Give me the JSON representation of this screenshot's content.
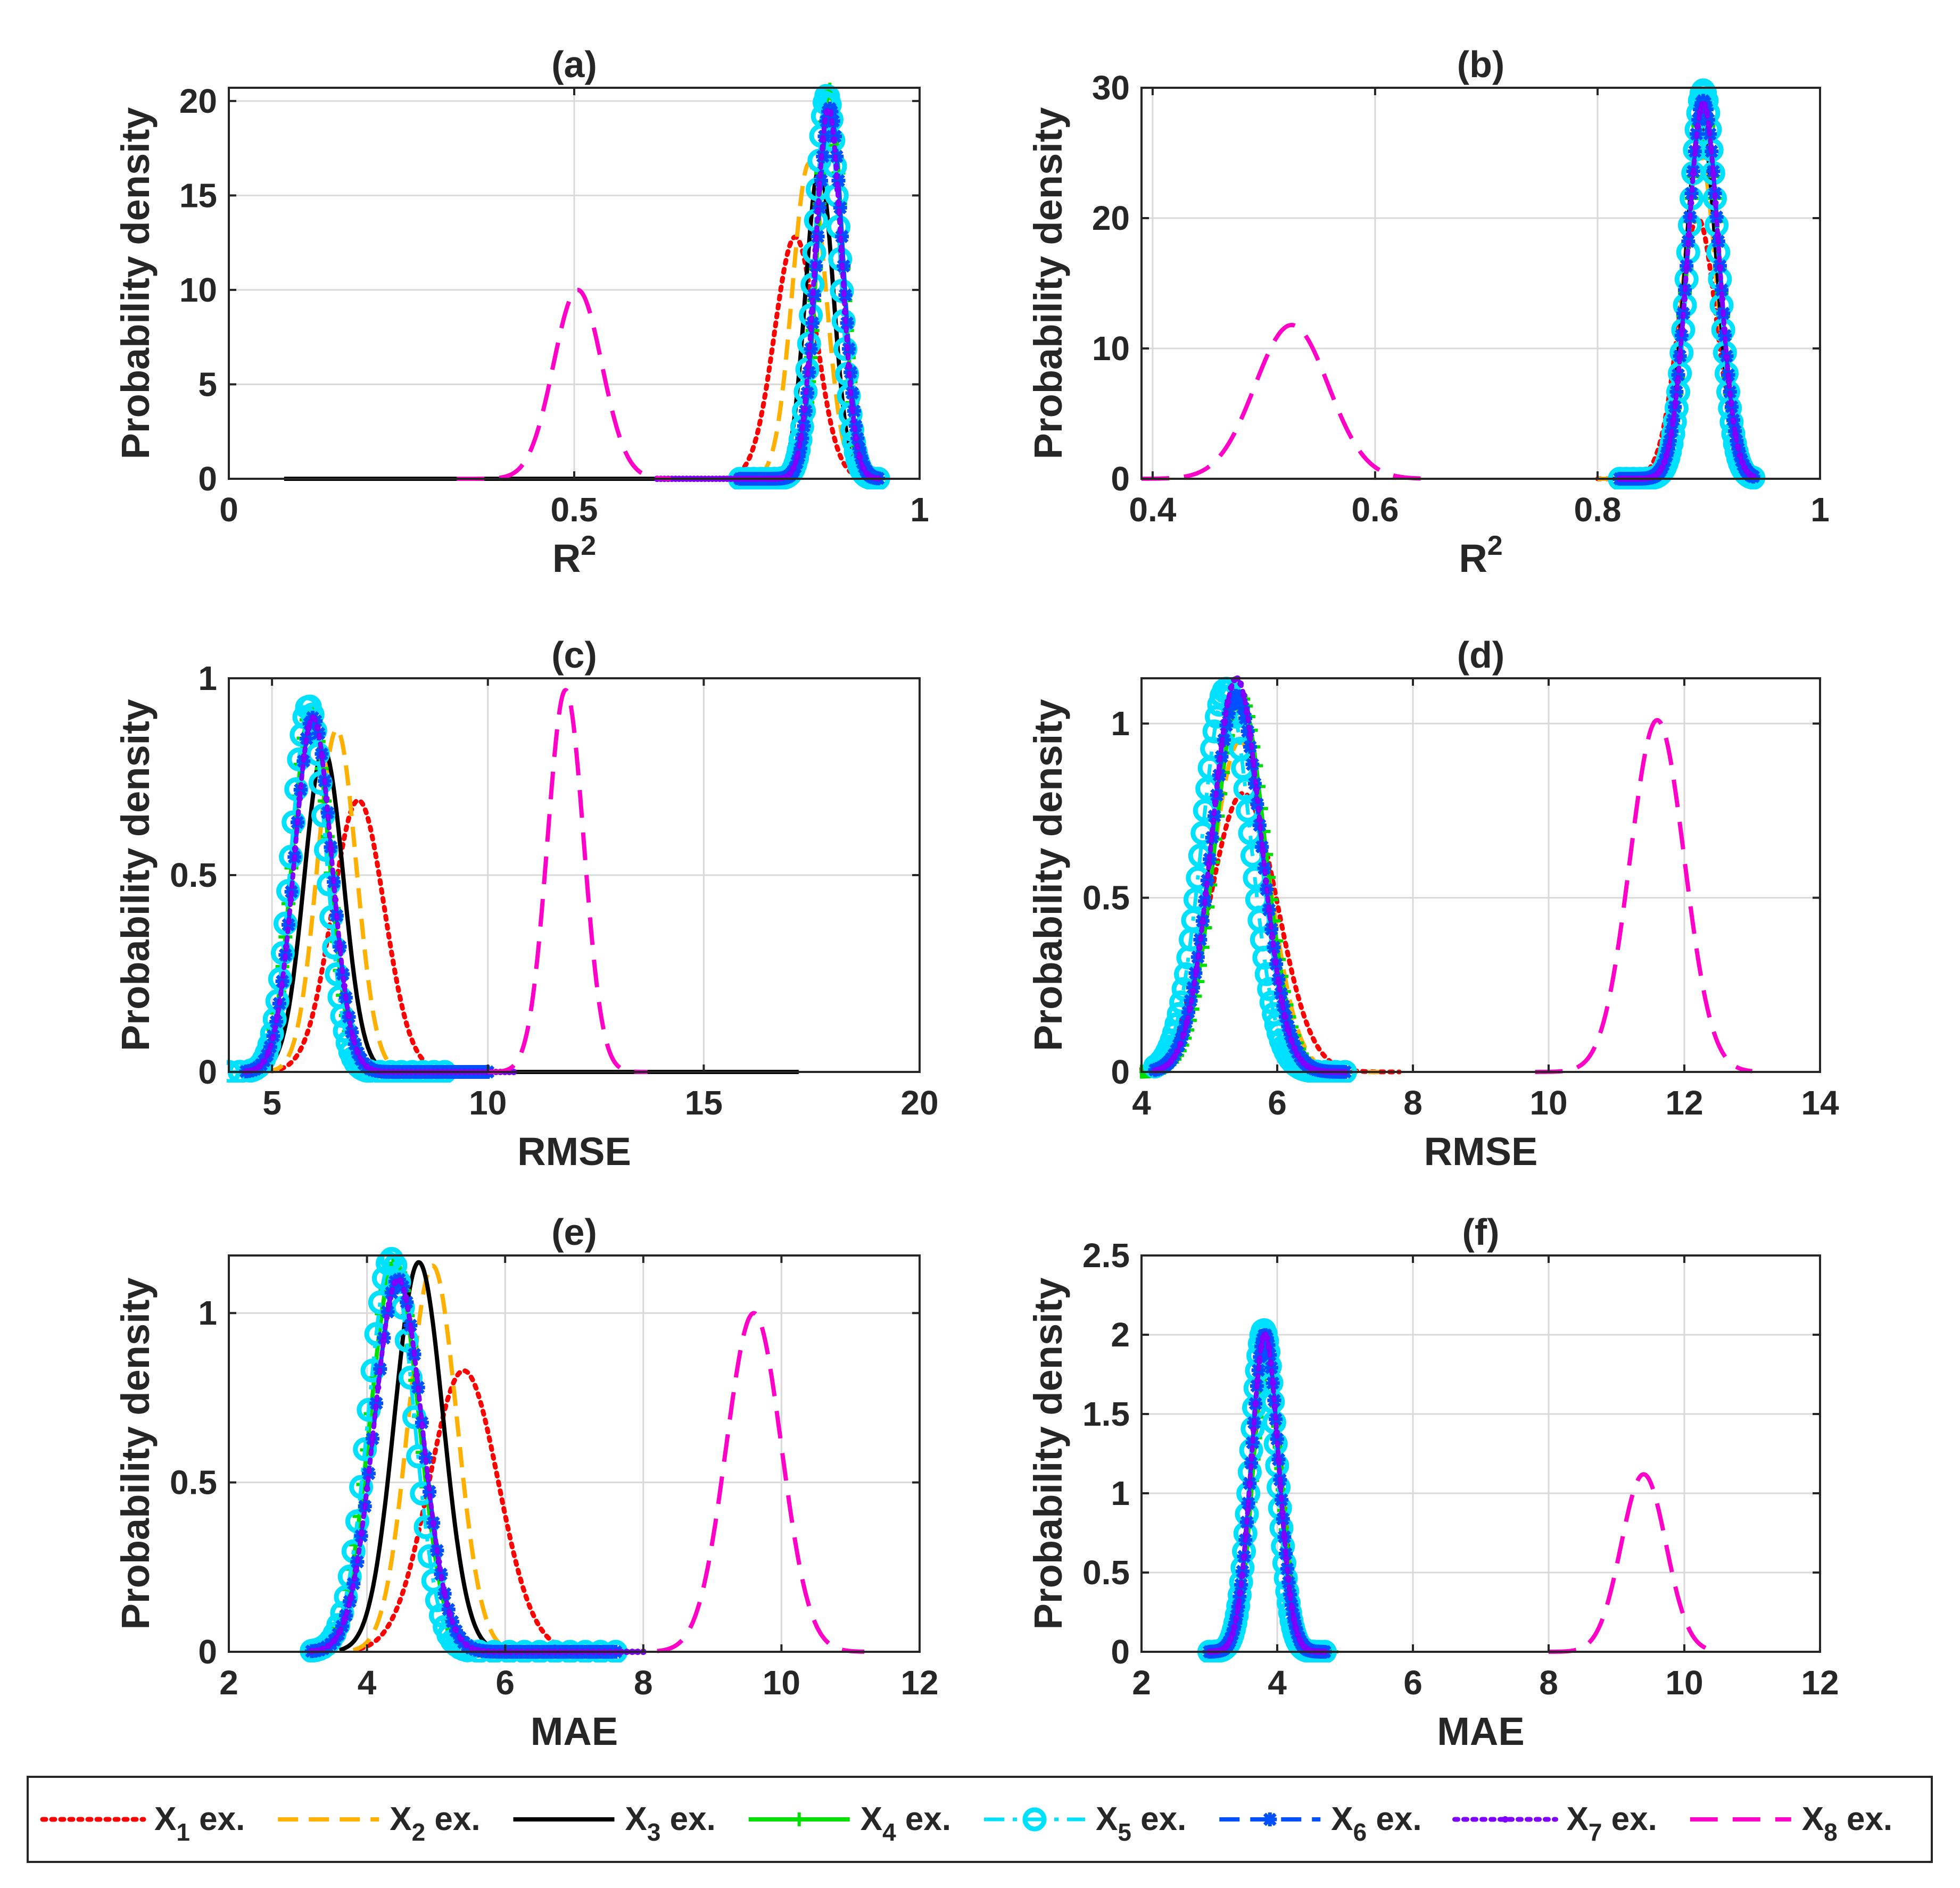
{
  "legend": {
    "items": [
      {
        "pre": "X",
        "sub": "1",
        "post": " ex.",
        "color": "#ff0000",
        "dash": "dot",
        "marker": "none"
      },
      {
        "pre": "X",
        "sub": "2",
        "post": " ex.",
        "color": "#ffb000",
        "dash": "dash",
        "marker": "none"
      },
      {
        "pre": "X",
        "sub": "3",
        "post": " ex.",
        "color": "#000000",
        "dash": "solid",
        "marker": "none"
      },
      {
        "pre": "X",
        "sub": "4",
        "post": " ex.",
        "color": "#00e000",
        "dash": "solid",
        "marker": "plus"
      },
      {
        "pre": "X",
        "sub": "5",
        "post": " ex.",
        "color": "#00e0ff",
        "dash": "dashdot",
        "marker": "circle"
      },
      {
        "pre": "X",
        "sub": "6",
        "post": " ex.",
        "color": "#0050ff",
        "dash": "dash",
        "marker": "star"
      },
      {
        "pre": "X",
        "sub": "7",
        "post": " ex.",
        "color": "#8000ff",
        "dash": "dot",
        "marker": "dot"
      },
      {
        "pre": "X",
        "sub": "8",
        "post": " ex.",
        "color": "#ff00c8",
        "dash": "longdash",
        "marker": "none"
      }
    ]
  },
  "chart_data": [
    {
      "type": "line",
      "title": "(a)",
      "xlabel": "R",
      "xlabel_sup": "2",
      "ylabel": "Probability density",
      "xlim": [
        0,
        1
      ],
      "ylim": [
        0,
        20.7
      ],
      "xticks": [
        "0",
        "0.5",
        "1"
      ],
      "xtick_values": [
        0,
        0.5,
        1
      ],
      "yticks": [
        "0",
        "5",
        "10",
        "15",
        "20"
      ],
      "ytick_values": [
        0,
        5,
        10,
        15,
        20
      ],
      "grid": true,
      "series": [
        {
          "name": "X1 ex.",
          "kind": "gauss",
          "mu": 0.82,
          "sigma": 0.03,
          "peak": 12.8,
          "from": 0.7,
          "to": 0.9
        },
        {
          "name": "X2 ex.",
          "kind": "gauss",
          "mu": 0.84,
          "sigma": 0.024,
          "peak": 16.7,
          "from": 0.72,
          "to": 0.91
        },
        {
          "name": "X3 ex.",
          "kind": "gauss",
          "mu": 0.855,
          "sigma": 0.02,
          "peak": 16.5,
          "from": 0.08,
          "to": 0.93
        },
        {
          "name": "X4 ex.",
          "kind": "gauss",
          "mu": 0.87,
          "sigma": 0.018,
          "peak": 20.6,
          "from": 0.74,
          "to": 0.94
        },
        {
          "name": "X5 ex.",
          "kind": "gauss",
          "mu": 0.866,
          "sigma": 0.018,
          "peak": 20.3,
          "from": 0.74,
          "to": 0.94
        },
        {
          "name": "X6 ex.",
          "kind": "gauss",
          "mu": 0.87,
          "sigma": 0.019,
          "peak": 19.6,
          "from": 0.74,
          "to": 0.94
        },
        {
          "name": "X7 ex.",
          "kind": "gauss",
          "mu": 0.868,
          "sigma": 0.019,
          "peak": 19.6,
          "from": 0.62,
          "to": 0.94
        },
        {
          "name": "X8 ex.",
          "kind": "gauss",
          "mu": 0.505,
          "sigma": 0.035,
          "peak": 10.0,
          "from": 0.33,
          "to": 0.64
        }
      ]
    },
    {
      "type": "line",
      "title": "(b)",
      "xlabel": "R",
      "xlabel_sup": "2",
      "ylabel": "Probability density",
      "xlim": [
        0.39,
        1
      ],
      "ylim": [
        0,
        30
      ],
      "xticks": [
        "0.4",
        "0.6",
        "0.8",
        "1"
      ],
      "xtick_values": [
        0.4,
        0.6,
        0.8,
        1
      ],
      "yticks": [
        "0",
        "10",
        "20",
        "30"
      ],
      "ytick_values": [
        0,
        10,
        20,
        30
      ],
      "grid": true,
      "series": [
        {
          "name": "X1 ex.",
          "kind": "gauss",
          "mu": 0.89,
          "sigma": 0.017,
          "peak": 20.0,
          "from": 0.8,
          "to": 0.94
        },
        {
          "name": "X2 ex.",
          "kind": "gauss",
          "mu": 0.892,
          "sigma": 0.015,
          "peak": 25.0,
          "from": 0.8,
          "to": 0.94
        },
        {
          "name": "X3 ex.",
          "kind": "gauss",
          "mu": 0.893,
          "sigma": 0.014,
          "peak": 27.5,
          "from": 0.81,
          "to": 0.94
        },
        {
          "name": "X4 ex.",
          "kind": "gauss",
          "mu": 0.895,
          "sigma": 0.014,
          "peak": 28.5,
          "from": 0.82,
          "to": 0.94
        },
        {
          "name": "X5 ex.",
          "kind": "gauss",
          "mu": 0.895,
          "sigma": 0.013,
          "peak": 29.8,
          "from": 0.82,
          "to": 0.94
        },
        {
          "name": "X6 ex.",
          "kind": "gauss",
          "mu": 0.895,
          "sigma": 0.014,
          "peak": 29.0,
          "from": 0.82,
          "to": 0.94
        },
        {
          "name": "X7 ex.",
          "kind": "gauss",
          "mu": 0.895,
          "sigma": 0.014,
          "peak": 28.8,
          "from": 0.82,
          "to": 0.94
        },
        {
          "name": "X8 ex.",
          "kind": "gauss",
          "mu": 0.525,
          "sigma": 0.033,
          "peak": 11.8,
          "from": 0.39,
          "to": 0.65
        }
      ]
    },
    {
      "type": "line",
      "title": "(c)",
      "xlabel": "RMSE",
      "ylabel": "Probability density",
      "xlim": [
        4,
        20
      ],
      "ylim": [
        0,
        1
      ],
      "xticks": [
        "5",
        "10",
        "15",
        "20"
      ],
      "xtick_values": [
        5,
        10,
        15,
        20
      ],
      "yticks": [
        "0",
        "0.5",
        "1"
      ],
      "ytick_values": [
        0,
        0.5,
        1
      ],
      "grid": true,
      "series": [
        {
          "name": "X1 ex.",
          "kind": "gauss",
          "mu": 7.0,
          "sigma": 0.6,
          "peak": 0.69,
          "from": 5.0,
          "to": 9.2
        },
        {
          "name": "X2 ex.",
          "kind": "gauss",
          "mu": 6.5,
          "sigma": 0.45,
          "peak": 0.87,
          "from": 4.8,
          "to": 8.5
        },
        {
          "name": "X3 ex.",
          "kind": "gauss",
          "mu": 6.2,
          "sigma": 0.45,
          "peak": 0.82,
          "from": 4.6,
          "to": 17.2
        },
        {
          "name": "X4 ex.",
          "kind": "gauss",
          "mu": 5.9,
          "sigma": 0.42,
          "peak": 0.92,
          "from": 4.4,
          "to": 10.0
        },
        {
          "name": "X5 ex.",
          "kind": "gauss",
          "mu": 5.85,
          "sigma": 0.4,
          "peak": 0.93,
          "from": 4.0,
          "to": 9.0
        },
        {
          "name": "X6 ex.",
          "kind": "gauss",
          "mu": 5.95,
          "sigma": 0.43,
          "peak": 0.9,
          "from": 4.4,
          "to": 10.0
        },
        {
          "name": "X7 ex.",
          "kind": "gauss",
          "mu": 5.95,
          "sigma": 0.43,
          "peak": 0.9,
          "from": 4.4,
          "to": 10.6
        },
        {
          "name": "X8 ex.",
          "kind": "gauss",
          "mu": 11.8,
          "sigma": 0.42,
          "peak": 0.97,
          "from": 10.0,
          "to": 13.7
        }
      ]
    },
    {
      "type": "line",
      "title": "(d)",
      "xlabel": "RMSE",
      "ylabel": "Probability density",
      "xlim": [
        4,
        14
      ],
      "ylim": [
        0,
        1.13
      ],
      "xticks": [
        "4",
        "6",
        "8",
        "10",
        "12",
        "14"
      ],
      "xtick_values": [
        4,
        6,
        8,
        10,
        12,
        14
      ],
      "yticks": [
        "0",
        "0.5",
        "1"
      ],
      "ytick_values": [
        0,
        0.5,
        1
      ],
      "grid": true,
      "series": [
        {
          "name": "X1 ex.",
          "kind": "gauss",
          "mu": 5.5,
          "sigma": 0.5,
          "peak": 0.8,
          "from": 4.0,
          "to": 7.8
        },
        {
          "name": "X2 ex.",
          "kind": "gauss",
          "mu": 5.45,
          "sigma": 0.42,
          "peak": 0.95,
          "from": 4.1,
          "to": 7.5
        },
        {
          "name": "X3 ex.",
          "kind": "gauss",
          "mu": 5.4,
          "sigma": 0.38,
          "peak": 1.05,
          "from": 4.2,
          "to": 7.0
        },
        {
          "name": "X4 ex.",
          "kind": "gauss",
          "mu": 5.45,
          "sigma": 0.37,
          "peak": 1.08,
          "from": 4.0,
          "to": 7.0
        },
        {
          "name": "X5 ex.",
          "kind": "gauss",
          "mu": 5.25,
          "sigma": 0.36,
          "peak": 1.1,
          "from": 4.2,
          "to": 7.0
        },
        {
          "name": "X6 ex.",
          "kind": "gauss",
          "mu": 5.4,
          "sigma": 0.37,
          "peak": 1.08,
          "from": 4.2,
          "to": 7.0
        },
        {
          "name": "X7 ex.",
          "kind": "gauss",
          "mu": 5.4,
          "sigma": 0.36,
          "peak": 1.13,
          "from": 4.2,
          "to": 7.0
        },
        {
          "name": "X8 ex.",
          "kind": "gauss",
          "mu": 11.6,
          "sigma": 0.4,
          "peak": 1.01,
          "from": 9.8,
          "to": 13.0
        }
      ]
    },
    {
      "type": "line",
      "title": "(e)",
      "xlabel": "MAE",
      "ylabel": "Probability density",
      "xlim": [
        2,
        12
      ],
      "ylim": [
        0,
        1.17
      ],
      "xticks": [
        "2",
        "4",
        "6",
        "8",
        "10",
        "12"
      ],
      "xtick_values": [
        2,
        4,
        6,
        8,
        10,
        12
      ],
      "yticks": [
        "0",
        "0.5",
        "1"
      ],
      "ytick_values": [
        0,
        0.5,
        1
      ],
      "grid": true,
      "series": [
        {
          "name": "X1 ex.",
          "kind": "gauss",
          "mu": 5.4,
          "sigma": 0.5,
          "peak": 0.83,
          "from": 3.9,
          "to": 7.1
        },
        {
          "name": "X2 ex.",
          "kind": "gauss",
          "mu": 4.95,
          "sigma": 0.35,
          "peak": 1.14,
          "from": 3.8,
          "to": 6.5
        },
        {
          "name": "X3 ex.",
          "kind": "gauss",
          "mu": 4.75,
          "sigma": 0.35,
          "peak": 1.15,
          "from": 3.6,
          "to": 6.2
        },
        {
          "name": "X4 ex.",
          "kind": "gauss",
          "mu": 4.4,
          "sigma": 0.35,
          "peak": 1.15,
          "from": 3.3,
          "to": 7.6
        },
        {
          "name": "X5 ex.",
          "kind": "gauss",
          "mu": 4.35,
          "sigma": 0.33,
          "peak": 1.16,
          "from": 3.2,
          "to": 7.6
        },
        {
          "name": "X6 ex.",
          "kind": "gauss",
          "mu": 4.45,
          "sigma": 0.35,
          "peak": 1.1,
          "from": 3.2,
          "to": 7.6
        },
        {
          "name": "X7 ex.",
          "kind": "gauss",
          "mu": 4.45,
          "sigma": 0.35,
          "peak": 1.1,
          "from": 3.2,
          "to": 8.0
        },
        {
          "name": "X8 ex.",
          "kind": "gauss",
          "mu": 9.6,
          "sigma": 0.4,
          "peak": 1.0,
          "from": 8.2,
          "to": 11.2
        }
      ]
    },
    {
      "type": "line",
      "title": "(f)",
      "xlabel": "MAE",
      "ylabel": "Probability density",
      "xlim": [
        2,
        12
      ],
      "ylim": [
        0,
        2.5
      ],
      "xticks": [
        "2",
        "4",
        "6",
        "8",
        "10",
        "12"
      ],
      "xtick_values": [
        2,
        4,
        6,
        8,
        10,
        12
      ],
      "yticks": [
        "0",
        "0.5",
        "1",
        "1.5",
        "2",
        "2.5"
      ],
      "ytick_values": [
        0,
        0.5,
        1,
        1.5,
        2,
        2.5
      ],
      "grid": true,
      "series": [
        {
          "name": "X1 ex.",
          "kind": "gauss",
          "mu": 3.85,
          "sigma": 0.22,
          "peak": 1.85,
          "from": 3.0,
          "to": 4.8
        },
        {
          "name": "X2 ex.",
          "kind": "gauss",
          "mu": 3.85,
          "sigma": 0.21,
          "peak": 1.9,
          "from": 3.0,
          "to": 4.8
        },
        {
          "name": "X3 ex.",
          "kind": "gauss",
          "mu": 3.82,
          "sigma": 0.2,
          "peak": 1.95,
          "from": 3.0,
          "to": 4.7
        },
        {
          "name": "X4 ex.",
          "kind": "gauss",
          "mu": 3.85,
          "sigma": 0.2,
          "peak": 1.98,
          "from": 3.0,
          "to": 4.8
        },
        {
          "name": "X5 ex.",
          "kind": "gauss",
          "mu": 3.8,
          "sigma": 0.19,
          "peak": 2.03,
          "from": 3.0,
          "to": 4.7
        },
        {
          "name": "X6 ex.",
          "kind": "gauss",
          "mu": 3.82,
          "sigma": 0.2,
          "peak": 2.0,
          "from": 3.0,
          "to": 4.7
        },
        {
          "name": "X7 ex.",
          "kind": "gauss",
          "mu": 3.82,
          "sigma": 0.2,
          "peak": 2.0,
          "from": 3.0,
          "to": 4.7
        },
        {
          "name": "X8 ex.",
          "kind": "gauss",
          "mu": 9.4,
          "sigma": 0.33,
          "peak": 1.12,
          "from": 8.0,
          "to": 10.5
        }
      ]
    }
  ]
}
